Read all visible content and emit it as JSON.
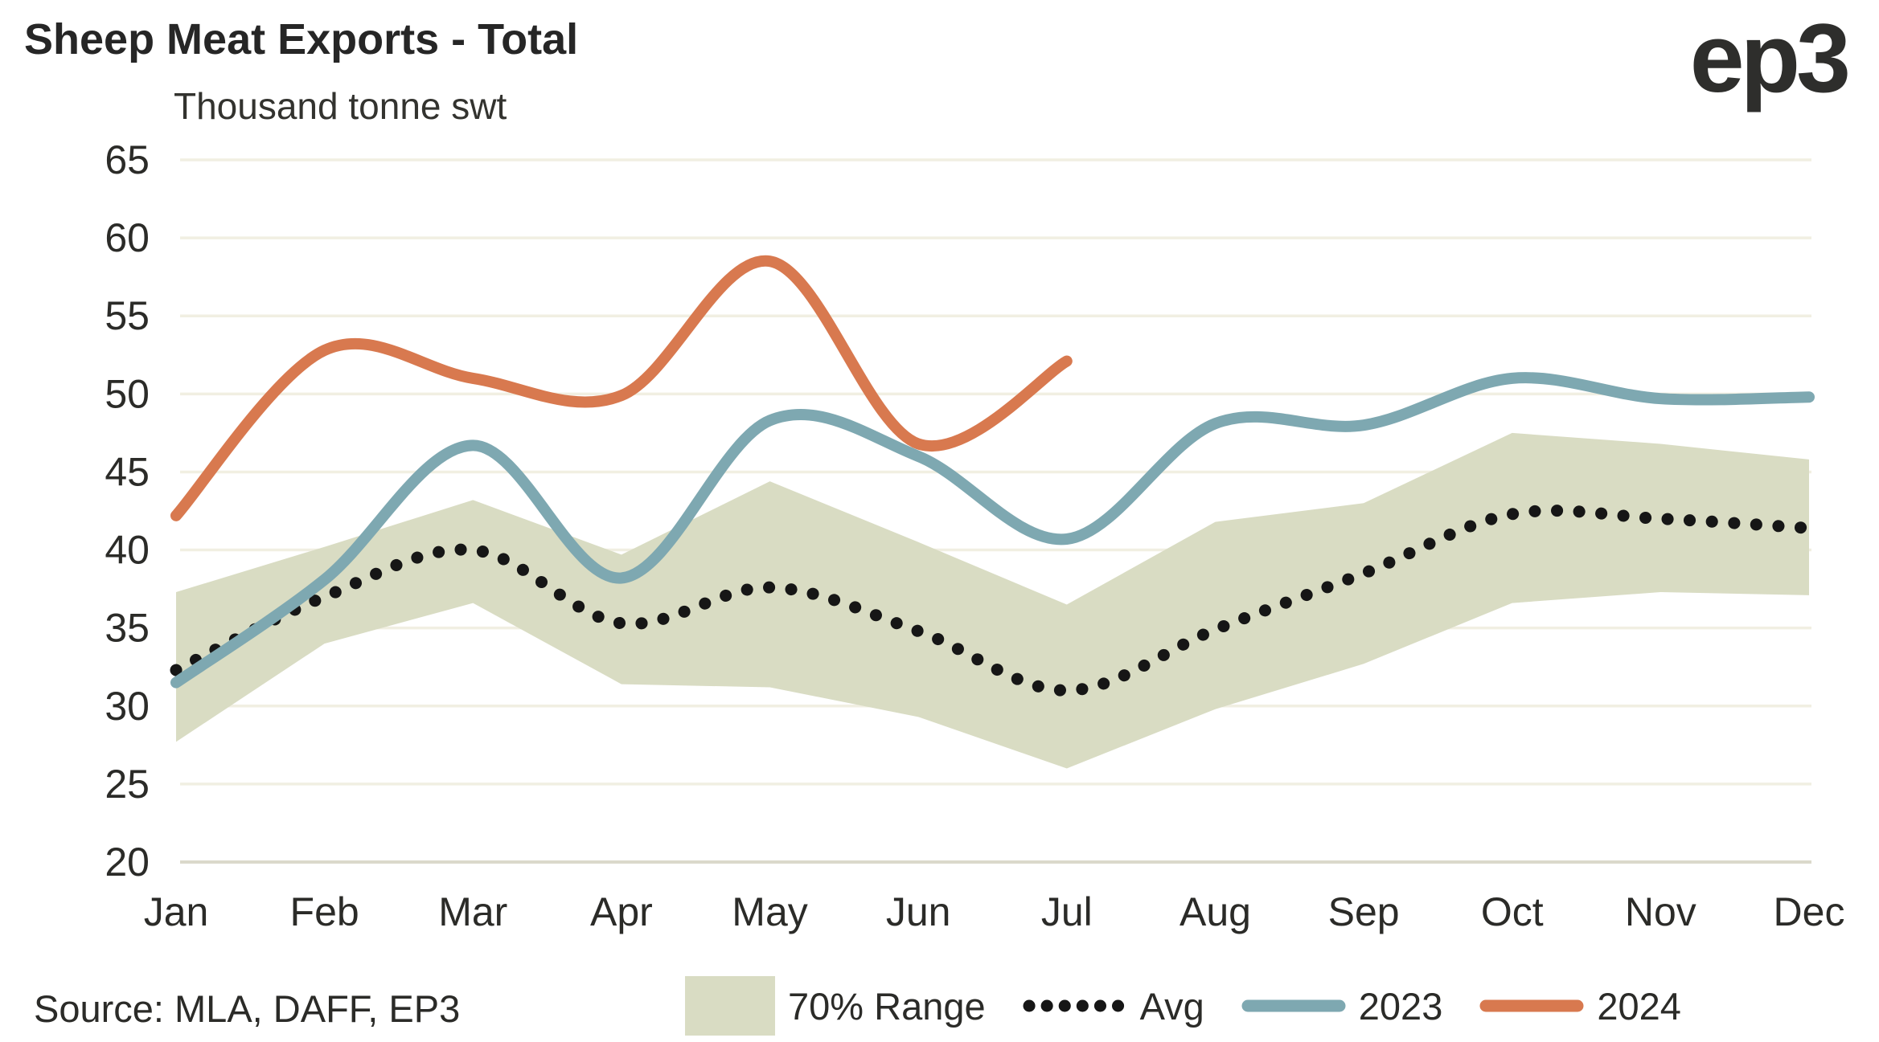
{
  "header": {
    "title": "Sheep Meat Exports - Total",
    "subtitle": "Thousand tonne swt",
    "logo": "ep3"
  },
  "source": "Source: MLA, DAFF, EP3",
  "colors": {
    "band": "#d9dcc3",
    "avg": "#161616",
    "y2023": "#7ea8b1",
    "y2024": "#d8794f",
    "grid": "#f1efe2",
    "baseline": "#dbd9cb",
    "text": "#2b2b28"
  },
  "legend": [
    {
      "key": "band",
      "label": "70% Range",
      "swatch": "box"
    },
    {
      "key": "avg",
      "label": "Avg",
      "swatch": "dotted"
    },
    {
      "key": "y2023",
      "label": "2023",
      "swatch": "line"
    },
    {
      "key": "y2024",
      "label": "2024",
      "swatch": "line"
    }
  ],
  "chart_data": {
    "type": "line",
    "title": "Sheep Meat Exports - Total",
    "ylabel": "Thousand tonne swt",
    "xlabel": "",
    "ylim": [
      20,
      65
    ],
    "ytick_step": 5,
    "grid": "horizontal",
    "legend_position": "bottom",
    "categories": [
      "Jan",
      "Feb",
      "Mar",
      "Apr",
      "May",
      "Jun",
      "Jul",
      "Aug",
      "Sep",
      "Oct",
      "Nov",
      "Dec"
    ],
    "series": [
      {
        "name": "70% Range",
        "type": "band",
        "color_key": "band",
        "upper": [
          37.3,
          40.2,
          43.2,
          39.7,
          44.4,
          40.5,
          36.5,
          41.8,
          43.0,
          47.5,
          46.8,
          45.8
        ],
        "lower": [
          27.7,
          34.0,
          36.6,
          31.4,
          31.2,
          29.3,
          26.0,
          29.8,
          32.7,
          36.6,
          37.3,
          37.1
        ]
      },
      {
        "name": "Avg",
        "type": "dotted-line",
        "color_key": "avg",
        "values": [
          32.3,
          37.0,
          40.0,
          35.3,
          37.6,
          34.8,
          31.0,
          34.9,
          38.5,
          42.3,
          42.0,
          41.4
        ]
      },
      {
        "name": "2023",
        "type": "line",
        "color_key": "y2023",
        "values": [
          31.5,
          38.1,
          46.7,
          38.2,
          48.3,
          46.0,
          40.7,
          48.1,
          48.0,
          51.0,
          49.7,
          49.8
        ]
      },
      {
        "name": "2024",
        "type": "line",
        "color_key": "y2024",
        "values": [
          42.2,
          52.8,
          51.0,
          49.9,
          58.5,
          46.8,
          52.1,
          null,
          null,
          null,
          null,
          null
        ]
      }
    ]
  }
}
